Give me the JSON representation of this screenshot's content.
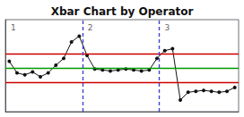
{
  "chart_data": {
    "type": "line",
    "title": "Xbar Chart by Operator",
    "categories": [
      null,
      null,
      null,
      null,
      null,
      null,
      null,
      null,
      null,
      null,
      null,
      null,
      null,
      null,
      null,
      null,
      null,
      null,
      null,
      null,
      null,
      null,
      null,
      null,
      null,
      null,
      null,
      null,
      null,
      null
    ],
    "values": [
      5.2,
      4.0,
      3.8,
      4.1,
      3.6,
      4.0,
      4.8,
      5.5,
      7.2,
      7.8,
      5.8,
      4.4,
      4.3,
      4.2,
      4.3,
      4.4,
      4.3,
      4.2,
      4.3,
      5.5,
      6.3,
      6.5,
      1.2,
      2.0,
      2.1,
      2.2,
      2.1,
      2.0,
      2.1,
      2.5
    ],
    "color": "#111111",
    "marker": "circle",
    "ylim": [
      0.0,
      9.5
    ],
    "yticks": [],
    "tick_labels": false,
    "grid": false,
    "reference_lines": [
      {
        "value": 6.0,
        "color": "#cc0000"
      },
      {
        "value": 4.5,
        "color": "#009900"
      },
      {
        "value": 3.0,
        "color": "#cc0000"
      }
    ],
    "dividers": {
      "values": [
        0.33,
        0.66
      ],
      "color": "#4444cc"
    },
    "annotations": [
      "1",
      "2",
      "3"
    ]
  }
}
